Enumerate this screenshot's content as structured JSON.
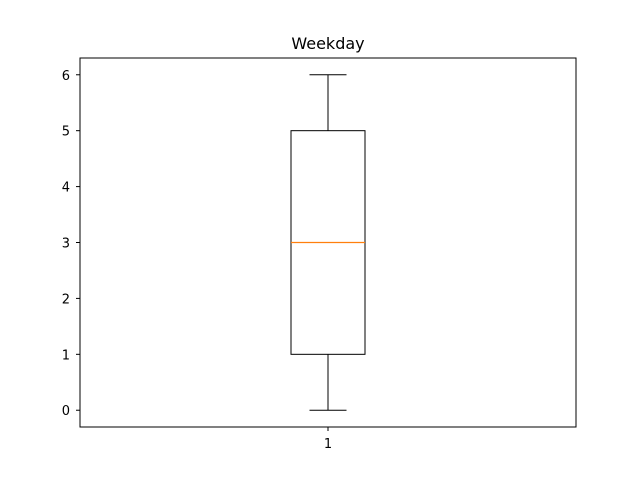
{
  "chart_data": {
    "type": "box",
    "title": "Weekday",
    "xlabel": "",
    "ylabel": "",
    "categories": [
      "1"
    ],
    "boxes": [
      {
        "category": "1",
        "whisker_low": 0,
        "q1": 1,
        "median": 3,
        "q3": 5,
        "whisker_high": 6
      }
    ],
    "ylim": [
      -0.3,
      6.3
    ],
    "yticks": [
      0,
      1,
      2,
      3,
      4,
      5,
      6
    ],
    "grid": false,
    "colors": {
      "box": "#000000",
      "median": "#ff7f0e",
      "whisker": "#000000"
    }
  }
}
